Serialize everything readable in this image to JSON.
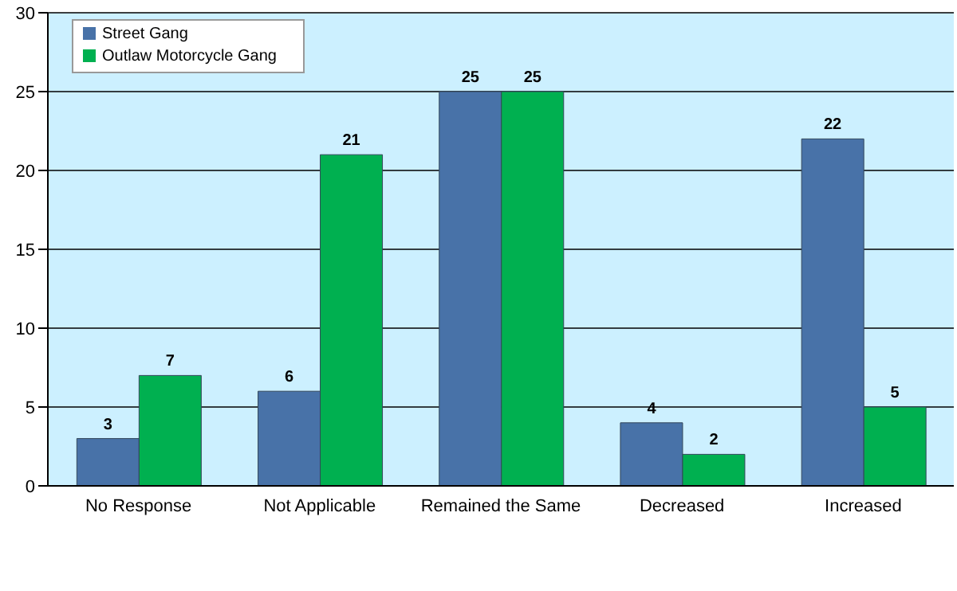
{
  "chart_data": {
    "type": "bar",
    "categories": [
      "No Response",
      "Not Applicable",
      "Remained the Same",
      "Decreased",
      "Increased"
    ],
    "series": [
      {
        "name": "Street Gang",
        "color": "#4872a8",
        "values": [
          3,
          6,
          25,
          4,
          22
        ]
      },
      {
        "name": "Outlaw Motorcycle Gang",
        "color": "#00b050",
        "values": [
          7,
          21,
          25,
          2,
          5
        ]
      }
    ],
    "ylim": [
      0,
      30
    ],
    "yticks": [
      0,
      5,
      10,
      15,
      20,
      25,
      30
    ],
    "grid": "y",
    "legend": "top left",
    "data_labels": true
  }
}
